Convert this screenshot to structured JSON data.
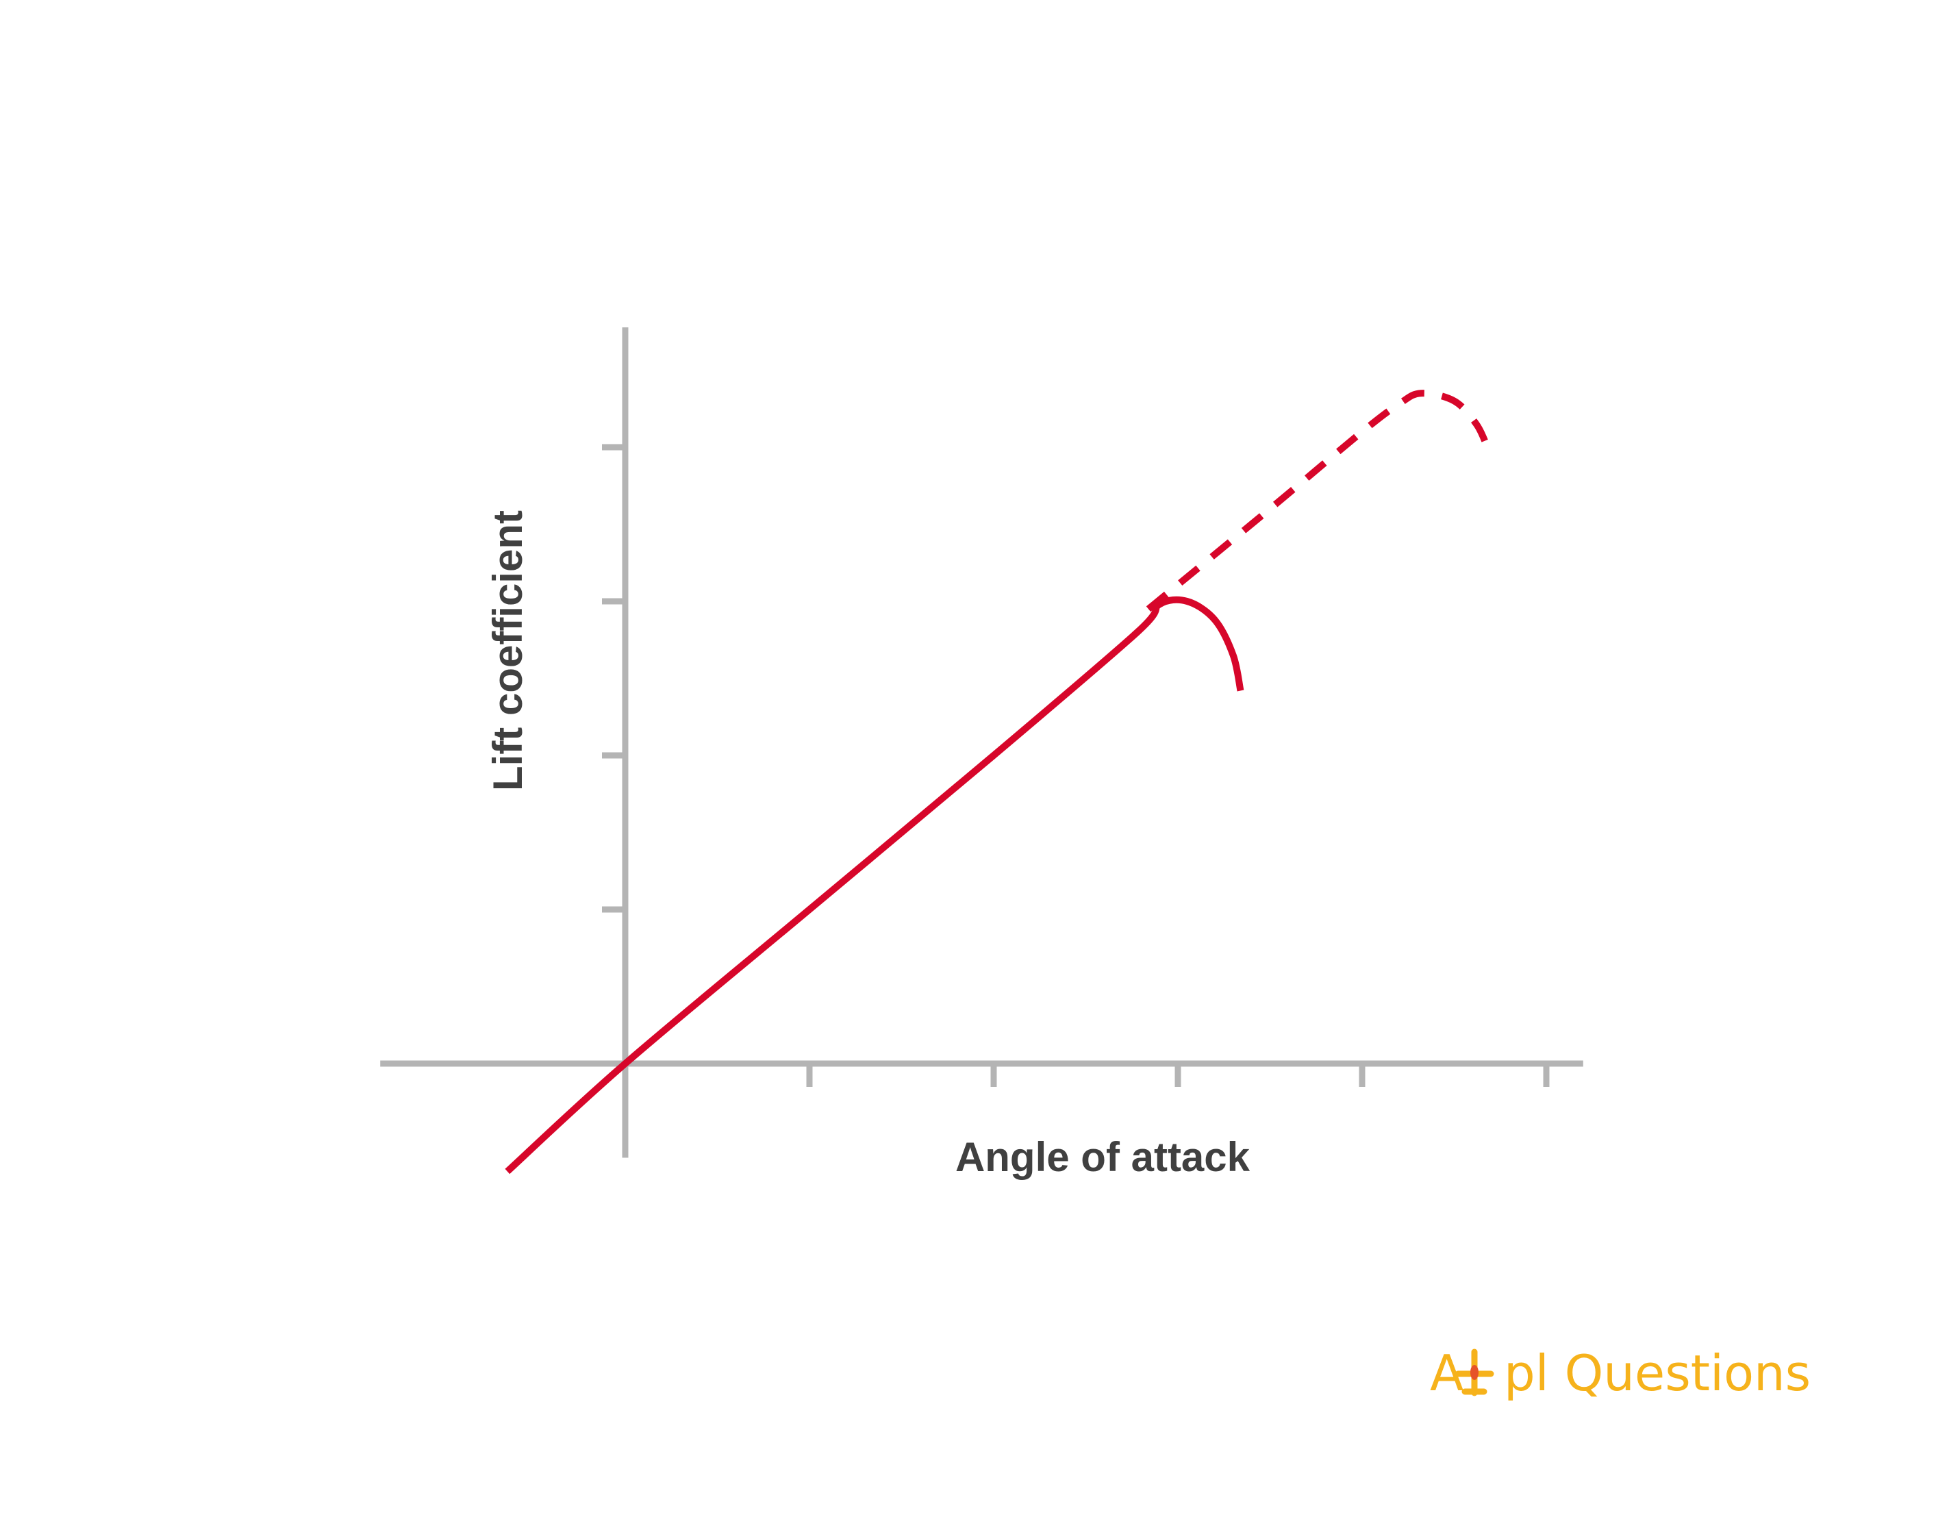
{
  "chart_data": {
    "type": "line",
    "title": "",
    "xlabel": "Angle of attack",
    "ylabel": "Lift coefficient",
    "xlim": [
      -1.33,
      5.2
    ],
    "ylim": [
      -0.7,
      4.6
    ],
    "x_ticks": [
      1,
      2,
      3,
      4,
      5
    ],
    "y_ticks": [
      1,
      2,
      3,
      4
    ],
    "grid": false,
    "series": [
      {
        "style": "solid",
        "color": "#D7062A",
        "x": [
          -0.64,
          0,
          1,
          2,
          2.78,
          2.9,
          3.05,
          3.2,
          3.3,
          3.34
        ],
        "y": [
          -0.7,
          0,
          1.0,
          2.0,
          2.8,
          2.98,
          3.0,
          2.88,
          2.65,
          2.42
        ]
      },
      {
        "style": "dashed",
        "color": "#D7062A",
        "x": [
          2.84,
          3.5,
          4.0,
          4.2,
          4.32,
          4.5,
          4.62,
          4.68
        ],
        "y": [
          2.95,
          3.6,
          4.1,
          4.28,
          4.35,
          4.3,
          4.15,
          4.0
        ]
      }
    ]
  },
  "colors": {
    "axis": "#B4B4B4",
    "line": "#D7062A",
    "label": "#404040",
    "logo": "#F6B21B"
  },
  "logo": {
    "text_start": "A",
    "text_end": "pl Questions",
    "icon": "airplane-icon"
  }
}
